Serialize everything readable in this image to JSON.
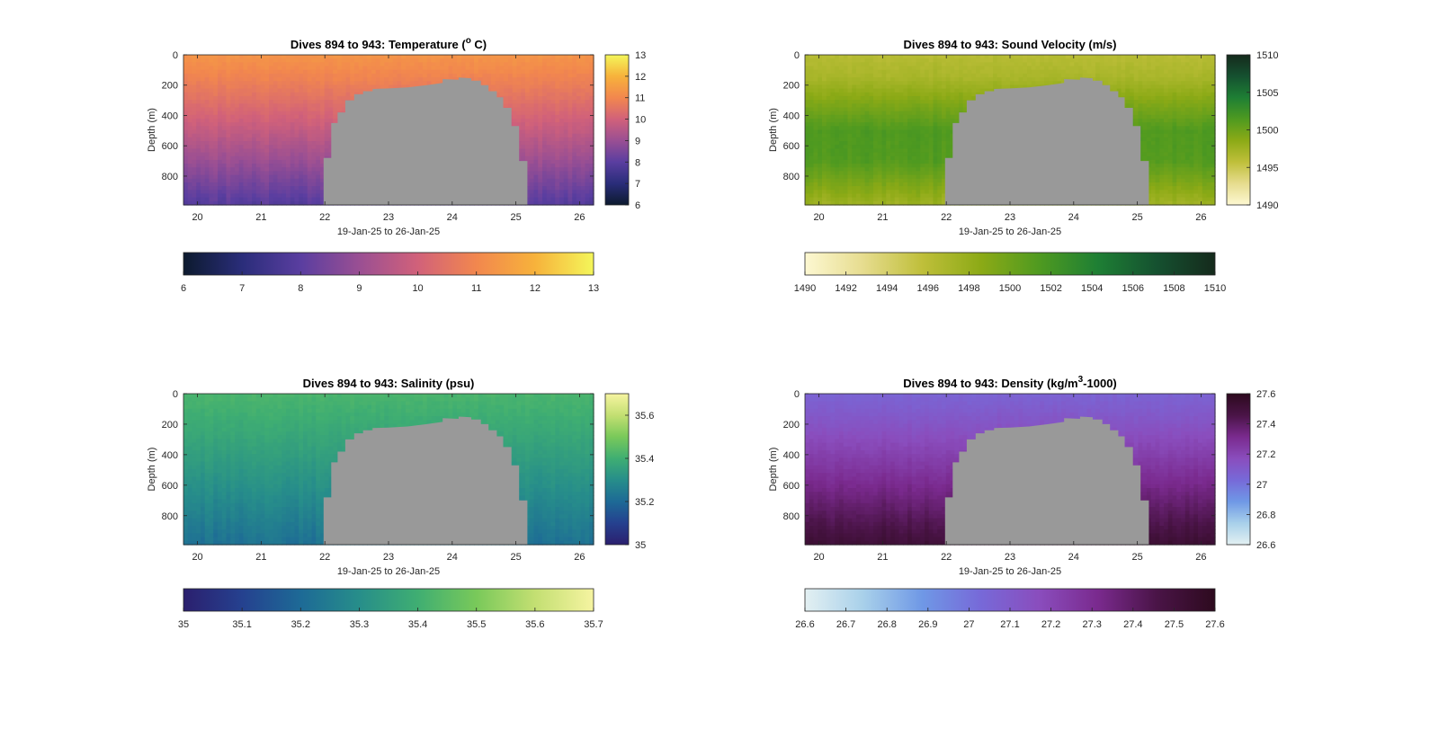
{
  "figure": {
    "background": "#ffffff",
    "bathymetry_color": "#999999"
  },
  "chart_data": [
    {
      "id": "temperature",
      "type": "heatmap",
      "title_pre": "Dives 894 to 943: Temperature (",
      "title_sup": "o",
      "title_post": " C)",
      "xlabel": "19-Jan-25 to 26-Jan-25",
      "ylabel": "Depth (m)",
      "xlim": [
        19.78,
        26.22
      ],
      "ylim": [
        0,
        990
      ],
      "y_reversed": true,
      "xticks": [
        20,
        21,
        22,
        23,
        24,
        25,
        26
      ],
      "yticks": [
        0,
        200,
        400,
        600,
        800
      ],
      "colormap": [
        "#0c1a2e",
        "#2a2d7a",
        "#5a3ea0",
        "#9a4f93",
        "#d1617a",
        "#f2874e",
        "#f7b23b",
        "#f4f65a"
      ],
      "clim": [
        6,
        13
      ],
      "value_at_surface": 11.3,
      "value_at_bottom": 7.9,
      "right_cbar_ticks": [
        6,
        7,
        8,
        9,
        10,
        11,
        12,
        13
      ],
      "bottom_cbar_ticks": [
        6,
        7,
        8,
        9,
        10,
        11,
        12,
        13
      ]
    },
    {
      "id": "sound_velocity",
      "type": "heatmap",
      "title_pre": "Dives 894 to 943: Sound Velocity (m/s)",
      "title_sup": "",
      "title_post": "",
      "xlabel": "19-Jan-25 to 26-Jan-25",
      "ylabel": "Depth (m)",
      "xlim": [
        19.78,
        26.22
      ],
      "ylim": [
        0,
        990
      ],
      "y_reversed": true,
      "xticks": [
        20,
        21,
        22,
        23,
        24,
        25,
        26
      ],
      "yticks": [
        0,
        200,
        400,
        600,
        800
      ],
      "colormap": [
        "#fdf8d2",
        "#e6dc8e",
        "#bfbf3a",
        "#8caa16",
        "#4f9a20",
        "#1e7f34",
        "#155130",
        "#152a1c"
      ],
      "clim": [
        1490,
        1510
      ],
      "value_at_surface": 1496.5,
      "value_at_bottom": 1499,
      "value_profile": [
        [
          0,
          1496.2
        ],
        [
          150,
          1497
        ],
        [
          500,
          1501.5
        ],
        [
          700,
          1501.3
        ],
        [
          990,
          1497.5
        ]
      ],
      "right_cbar_ticks": [
        1490,
        1495,
        1500,
        1505,
        1510
      ],
      "bottom_cbar_ticks": [
        1490,
        1492,
        1494,
        1496,
        1498,
        1500,
        1502,
        1504,
        1506,
        1508,
        1510
      ]
    },
    {
      "id": "salinity",
      "type": "heatmap",
      "title_pre": "Dives 894 to 943: Salinity (psu)",
      "title_sup": "",
      "title_post": "",
      "xlabel": "19-Jan-25 to 26-Jan-25",
      "ylabel": "Depth (m)",
      "xlim": [
        19.78,
        26.22
      ],
      "ylim": [
        0,
        990
      ],
      "y_reversed": true,
      "xticks": [
        20,
        21,
        22,
        23,
        24,
        25,
        26
      ],
      "yticks": [
        0,
        200,
        400,
        600,
        800
      ],
      "colormap": [
        "#2b1f6e",
        "#25418f",
        "#1d6a96",
        "#278e8a",
        "#3fae72",
        "#79c95a",
        "#c3df72",
        "#f6f4a1"
      ],
      "clim": [
        35,
        35.7
      ],
      "value_at_surface": 35.42,
      "value_at_bottom": 35.22,
      "right_cbar_ticks": [
        35,
        35.2,
        35.4,
        35.6
      ],
      "bottom_cbar_ticks": [
        35,
        35.1,
        35.2,
        35.3,
        35.4,
        35.5,
        35.6,
        35.7
      ]
    },
    {
      "id": "density",
      "type": "heatmap",
      "title_pre": "Dives 894 to 943: Density (kg/m",
      "title_sup": "3",
      "title_post": "-1000)",
      "xlabel": "19-Jan-25 to 26-Jan-25",
      "ylabel": "Depth (m)",
      "xlim": [
        19.78,
        26.22
      ],
      "ylim": [
        0,
        990
      ],
      "y_reversed": true,
      "xticks": [
        20,
        21,
        22,
        23,
        24,
        25,
        26
      ],
      "yticks": [
        0,
        200,
        400,
        600,
        800
      ],
      "colormap": [
        "#e3f0f2",
        "#a8d0ea",
        "#6f98e6",
        "#7769d8",
        "#8a4dbd",
        "#7a2a8e",
        "#4a1447",
        "#2d0a1e"
      ],
      "clim": [
        26.6,
        27.6
      ],
      "value_at_surface": 27.06,
      "value_at_bottom": 27.52,
      "right_cbar_ticks": [
        26.6,
        26.8,
        27,
        27.2,
        27.4,
        27.6
      ],
      "bottom_cbar_ticks": [
        26.6,
        26.7,
        26.8,
        26.9,
        27,
        27.1,
        27.2,
        27.3,
        27.4,
        27.5,
        27.6
      ]
    }
  ],
  "bathymetry_profile_depth_m": [
    [
      21.98,
      990
    ],
    [
      21.98,
      680
    ],
    [
      22.1,
      680
    ],
    [
      22.1,
      450
    ],
    [
      22.2,
      450
    ],
    [
      22.2,
      380
    ],
    [
      22.32,
      380
    ],
    [
      22.32,
      300
    ],
    [
      22.46,
      300
    ],
    [
      22.46,
      260
    ],
    [
      22.6,
      260
    ],
    [
      22.6,
      240
    ],
    [
      22.75,
      240
    ],
    [
      22.75,
      225
    ],
    [
      23.0,
      222
    ],
    [
      23.3,
      215
    ],
    [
      23.6,
      200
    ],
    [
      23.85,
      185
    ],
    [
      23.85,
      160
    ],
    [
      24.1,
      165
    ],
    [
      24.1,
      150
    ],
    [
      24.3,
      155
    ],
    [
      24.3,
      170
    ],
    [
      24.45,
      170
    ],
    [
      24.45,
      200
    ],
    [
      24.57,
      200
    ],
    [
      24.57,
      240
    ],
    [
      24.7,
      240
    ],
    [
      24.7,
      280
    ],
    [
      24.8,
      280
    ],
    [
      24.8,
      350
    ],
    [
      24.93,
      350
    ],
    [
      24.93,
      470
    ],
    [
      25.05,
      470
    ],
    [
      25.05,
      700
    ],
    [
      25.18,
      700
    ],
    [
      25.18,
      990
    ]
  ]
}
